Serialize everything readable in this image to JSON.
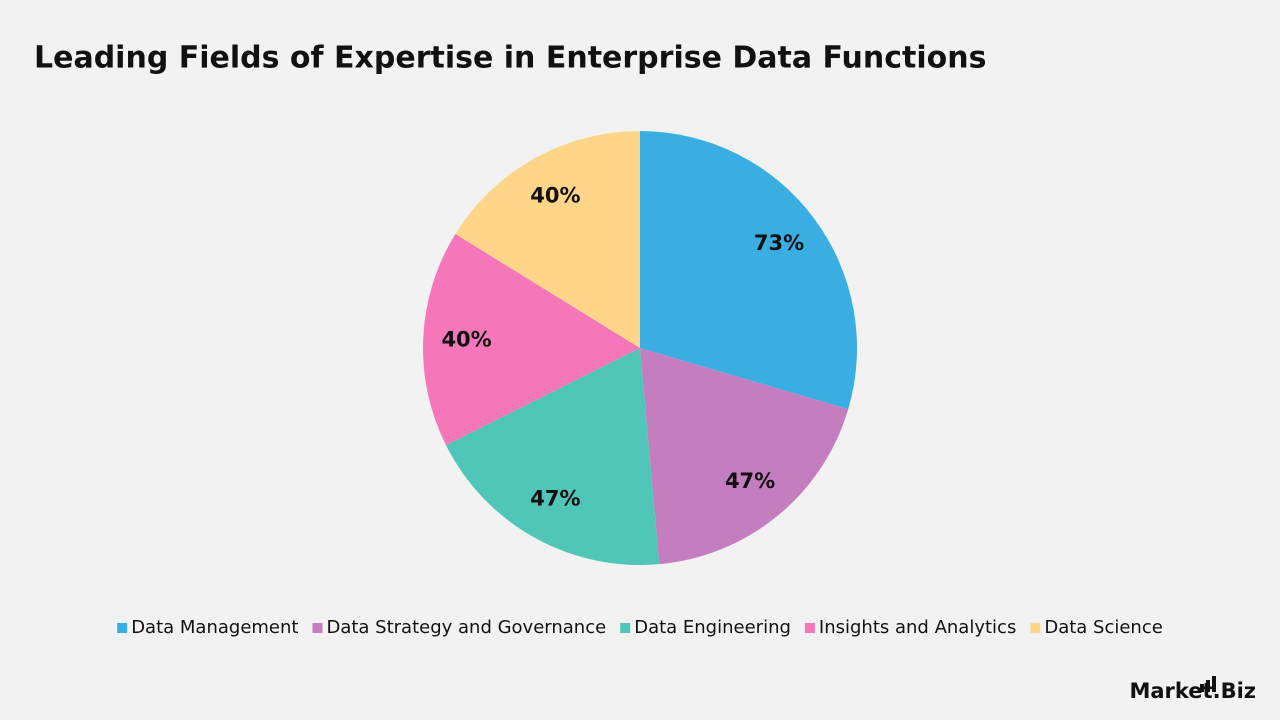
{
  "chart_data": {
    "type": "pie",
    "title": "Leading Fields of Expertise in Enterprise Data Functions",
    "categories": [
      "Data Management",
      "Data Strategy and Governance",
      "Data Engineering",
      "Insights and Analytics",
      "Data Science"
    ],
    "values": [
      73,
      47,
      47,
      40,
      40
    ],
    "value_labels": [
      "73%",
      "47%",
      "47%",
      "40%",
      "40%"
    ],
    "colors": [
      "#3aaee3",
      "#c47dbe",
      "#50c6b9",
      "#f577ba",
      "#ffd589"
    ],
    "legend": "bottom"
  },
  "logo": "Market.Biz"
}
